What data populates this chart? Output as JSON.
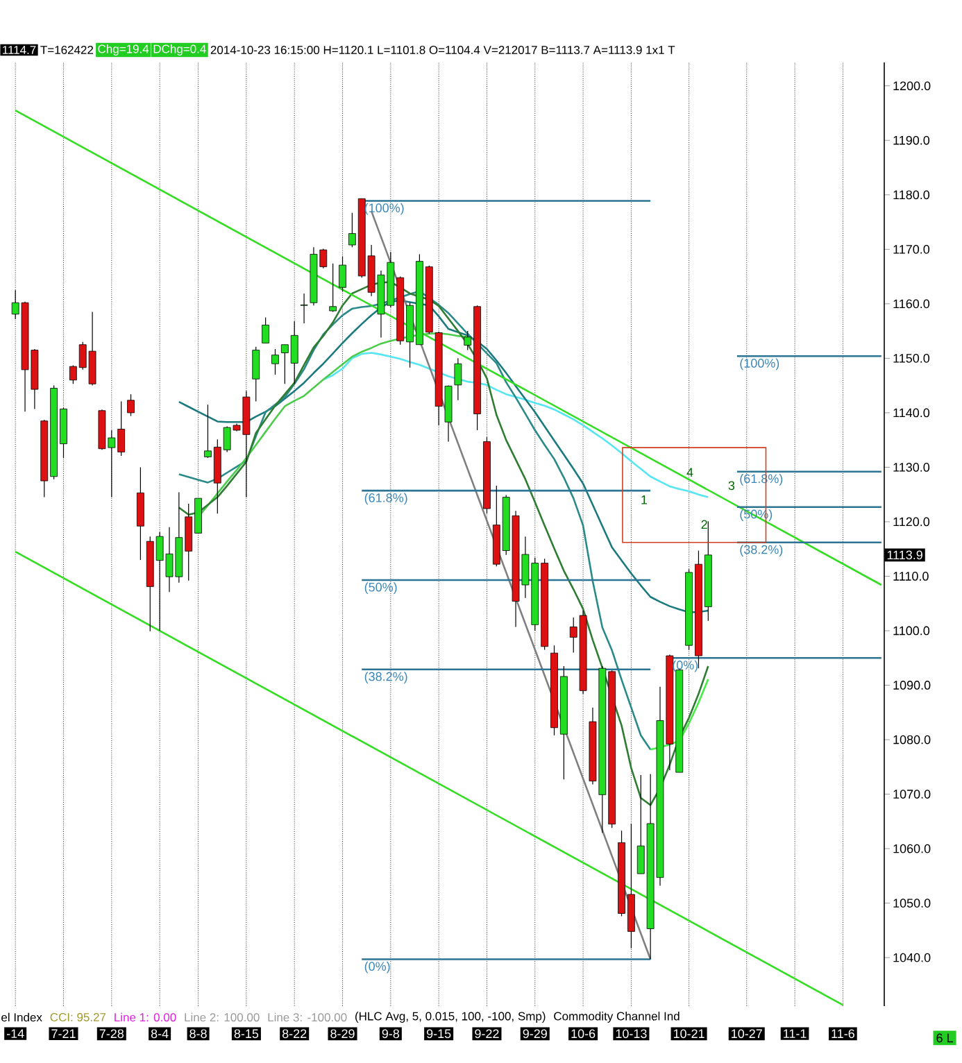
{
  "chart_data": {
    "type": "candlestick",
    "categories": [
      "-14",
      null,
      null,
      null,
      null,
      "7-21",
      null,
      null,
      null,
      null,
      "7-28",
      null,
      null,
      null,
      null,
      "8-4",
      null,
      null,
      null,
      "8-8",
      null,
      null,
      null,
      null,
      "8-15",
      null,
      null,
      null,
      null,
      "8-22",
      null,
      null,
      null,
      null,
      "8-29",
      null,
      null,
      null,
      null,
      "9-8",
      null,
      null,
      null,
      null,
      "9-15",
      null,
      null,
      null,
      null,
      "9-22",
      null,
      null,
      null,
      null,
      "9-29",
      null,
      null,
      null,
      null,
      "10-6",
      null,
      null,
      null,
      null,
      "10-13",
      null,
      null,
      null,
      null,
      null,
      "10-21",
      null,
      null,
      null,
      null,
      null,
      "10-27",
      null,
      null,
      null,
      null,
      "11-1",
      null,
      null,
      null,
      null,
      "11-6",
      null,
      null,
      null,
      null
    ],
    "ohlc": [
      [
        1158.1,
        1162.5,
        1157.2,
        1160.2
      ],
      [
        1160.2,
        1160.4,
        1140.2,
        1147.9
      ],
      [
        1151.5,
        1151.7,
        1140.7,
        1144.3
      ],
      [
        1138.5,
        1138.7,
        1124.5,
        1127.5
      ],
      [
        1128.3,
        1145.0,
        1127.8,
        1144.5
      ],
      [
        1134.3,
        1140.9,
        1131.7,
        1140.7
      ],
      [
        1148.5,
        1148.7,
        1145.3,
        1146.0
      ],
      [
        1152.5,
        1153.0,
        1147.9,
        1148.3
      ],
      [
        1151.3,
        1158.5,
        1145.0,
        1145.3
      ],
      [
        1140.4,
        1140.6,
        1133.2,
        1133.4
      ],
      [
        1133.6,
        1136.8,
        1124.5,
        1135.4
      ],
      [
        1137.0,
        1142.1,
        1132.1,
        1132.8
      ],
      [
        1142.3,
        1143.4,
        1139.4,
        1140.0
      ],
      [
        1125.3,
        1130.0,
        1113.0,
        1119.2
      ],
      [
        1116.4,
        1117.3,
        1099.9,
        1108.1
      ],
      [
        1112.9,
        1118.1,
        1100.0,
        1117.3
      ],
      [
        1109.9,
        1119.0,
        1107.1,
        1114.1
      ],
      [
        1109.9,
        1125.4,
        1108.8,
        1117.1
      ],
      [
        1120.9,
        1123.3,
        1109.2,
        1114.6
      ],
      [
        1117.9,
        1124.3,
        1117.9,
        1124.3
      ],
      [
        1131.9,
        1141.5,
        1131.7,
        1133.0
      ],
      [
        1133.7,
        1135.1,
        1121.5,
        1127.1
      ],
      [
        1133.2,
        1137.5,
        1132.8,
        1137.3
      ],
      [
        1137.7,
        1138.0,
        1136.6,
        1136.8
      ],
      [
        1142.9,
        1144.0,
        1124.5,
        1136.0
      ],
      [
        1146.2,
        1152.1,
        1142.1,
        1151.5
      ],
      [
        1152.8,
        1157.5,
        1152.8,
        1156.1
      ],
      [
        1149.0,
        1151.7,
        1147.0,
        1150.6
      ],
      [
        1151.0,
        1152.5,
        1145.3,
        1152.5
      ],
      [
        1149.1,
        1156.8,
        1145.3,
        1154.2
      ],
      [
        1159.7,
        1161.9,
        1156.4,
        1159.8
      ],
      [
        1160.2,
        1170.4,
        1159.7,
        1169.1
      ],
      [
        1169.9,
        1170.1,
        1166.5,
        1166.8
      ],
      [
        1158.7,
        1167.4,
        1158.5,
        1159.5
      ],
      [
        1163.0,
        1168.7,
        1162.3,
        1167.1
      ],
      [
        1170.8,
        1176.7,
        1170.4,
        1172.9
      ],
      [
        1179.3,
        1179.3,
        1164.8,
        1165.1
      ],
      [
        1168.8,
        1170.8,
        1161.4,
        1162.1
      ],
      [
        1158.1,
        1166.1,
        1153.8,
        1165.3
      ],
      [
        1159.7,
        1169.5,
        1159.3,
        1167.6
      ],
      [
        1164.8,
        1165.0,
        1152.5,
        1153.2
      ],
      [
        1153.0,
        1160.2,
        1148.3,
        1159.7
      ],
      [
        1152.5,
        1169.1,
        1152.5,
        1167.8
      ],
      [
        1166.8,
        1167.0,
        1154.5,
        1154.8
      ],
      [
        1154.7,
        1154.9,
        1137.7,
        1141.2
      ],
      [
        1138.3,
        1145.0,
        1134.7,
        1144.9
      ],
      [
        1145.1,
        1150.0,
        1142.3,
        1149.0
      ],
      [
        1152.4,
        1155.0,
        1151.5,
        1153.9
      ],
      [
        1159.5,
        1159.7,
        1136.8,
        1139.8
      ],
      [
        1134.7,
        1135.5,
        1121.5,
        1122.4
      ],
      [
        1119.4,
        1126.6,
        1111.8,
        1112.2
      ],
      [
        1114.7,
        1124.9,
        1113.9,
        1124.5
      ],
      [
        1121.1,
        1122.0,
        1100.7,
        1105.4
      ],
      [
        1108.4,
        1117.3,
        1106.0,
        1114.0
      ],
      [
        1101.1,
        1113.4,
        1100.0,
        1112.4
      ],
      [
        1112.4,
        1113.2,
        1096.5,
        1097.1
      ],
      [
        1095.9,
        1097.3,
        1080.8,
        1082.2
      ],
      [
        1081.0,
        1093.5,
        1072.7,
        1091.6
      ],
      [
        1100.7,
        1102.4,
        1096.0,
        1098.8
      ],
      [
        1102.8,
        1103.7,
        1088.4,
        1089.0
      ],
      [
        1083.3,
        1085.9,
        1071.8,
        1072.4
      ],
      [
        1069.9,
        1093.5,
        1062.9,
        1093.1
      ],
      [
        1092.5,
        1092.7,
        1063.8,
        1064.5
      ],
      [
        1061.1,
        1063.3,
        1047.6,
        1048.1
      ],
      [
        1051.6,
        1064.6,
        1041.7,
        1044.8
      ],
      [
        1055.4,
        1073.5,
        1055.4,
        1060.5
      ],
      [
        1045.3,
        1073.7,
        1039.7,
        1064.6
      ],
      [
        1054.7,
        1089.7,
        1053.2,
        1083.5
      ],
      [
        1095.4,
        1095.6,
        1074.4,
        1079.2
      ],
      [
        1074.0,
        1093.1,
        1074.0,
        1092.8
      ],
      [
        1097.3,
        1111.3,
        1096.5,
        1110.7
      ],
      [
        1112.2,
        1114.7,
        1093.1,
        1095.4
      ],
      [
        1104.4,
        1120.1,
        1101.8,
        1113.9
      ],
      null,
      null,
      null,
      null,
      null,
      null,
      null,
      null,
      null,
      null,
      null,
      null,
      null,
      null,
      null,
      null,
      null,
      null
    ],
    "series": [
      {
        "type": "line",
        "color": "#55e6f2",
        "values": [
          null,
          null,
          null,
          null,
          null,
          null,
          null,
          null,
          null,
          null,
          null,
          null,
          null,
          null,
          null,
          null,
          null,
          null,
          null,
          null,
          null,
          null,
          null,
          null,
          null,
          null,
          null,
          null,
          null,
          null,
          null,
          null,
          1146.1,
          1146.9,
          1148.1,
          1150.0,
          1150.8,
          1151.0,
          1150.7,
          1150.3,
          1149.9,
          1149.3,
          1148.8,
          1148.1,
          1147.4,
          1146.7,
          1146.2,
          1145.7,
          1145.5,
          1145.1,
          1144.2,
          1143.4,
          1142.9,
          1142.4,
          1141.8,
          1141.3,
          1140.6,
          1139.7,
          1138.8,
          1137.7,
          1136.5,
          1135.3,
          1134.0,
          1132.6,
          1131.1,
          1129.7,
          1128.3,
          1127.4,
          1126.5,
          1126.0,
          1125.6,
          1125.0,
          1124.5,
          null,
          null,
          null,
          null,
          null,
          null,
          null,
          null,
          null,
          null,
          null,
          null,
          null,
          null,
          null,
          null,
          null,
          null
        ]
      },
      {
        "type": "line",
        "color": "#1b7a80",
        "values": [
          null,
          null,
          null,
          null,
          null,
          null,
          null,
          null,
          null,
          null,
          null,
          null,
          null,
          null,
          null,
          null,
          null,
          1142.0,
          1141.1,
          1140.2,
          1139.3,
          1138.4,
          1138.3,
          1138.3,
          1138.3,
          1139.3,
          1140.2,
          1141.2,
          1142.6,
          1144.0,
          1145.5,
          1147.3,
          1149.0,
          1150.9,
          1152.8,
          1154.6,
          1156.3,
          1157.9,
          1159.3,
          1160.4,
          1160.6,
          1160.3,
          1160.0,
          1159.7,
          1157.7,
          1155.4,
          1154.8,
          1154.2,
          1153.1,
          1151.7,
          1149.6,
          1147.3,
          1144.9,
          1142.5,
          1140.1,
          1137.5,
          1134.9,
          1132.3,
          1129.7,
          1127.0,
          1123.1,
          1119.2,
          1115.3,
          1112.9,
          1110.5,
          1108.3,
          1106.2,
          1105.3,
          1104.5,
          1103.9,
          1103.4,
          1103.4,
          1103.7,
          null,
          null,
          null,
          null,
          null,
          null,
          null,
          null,
          null,
          null,
          null,
          null,
          null,
          null,
          null,
          null,
          null,
          null
        ]
      },
      {
        "type": "line",
        "color": "#2a8a8a",
        "values": [
          null,
          null,
          null,
          null,
          null,
          null,
          null,
          null,
          null,
          null,
          null,
          null,
          null,
          null,
          null,
          null,
          null,
          1128.7,
          1128.2,
          1127.7,
          1127.2,
          1127.9,
          1129.0,
          1130.1,
          1131.2,
          1135.7,
          1140.1,
          1141.5,
          1142.9,
          1145.3,
          1148.0,
          1151.5,
          1154.4,
          1156.2,
          1157.9,
          1159.1,
          1159.4,
          1159.6,
          1160.0,
          1160.6,
          1161.2,
          1161.8,
          1162.3,
          1161.1,
          1159.8,
          1158.3,
          1156.4,
          1154.5,
          1152.7,
          1150.9,
          1149.1,
          1145.6,
          1142.8,
          1139.8,
          1136.8,
          1134.1,
          1131.5,
          1128.1,
          1124.3,
          1119.3,
          1109.1,
          1100.6,
          1096.4,
          1091.0,
          1085.9,
          1080.8,
          1078.2,
          null,
          null,
          null,
          null,
          null,
          null,
          null,
          null,
          null,
          null,
          null,
          null,
          null,
          null,
          null,
          null,
          null,
          null,
          null,
          null,
          null,
          null,
          null,
          null
        ]
      },
      {
        "type": "line",
        "color": "#4ccc4c",
        "values": [
          null,
          null,
          null,
          null,
          null,
          null,
          null,
          null,
          null,
          null,
          null,
          null,
          null,
          null,
          null,
          null,
          null,
          null,
          null,
          1120.9,
          1123.0,
          1125.2,
          1127.4,
          1129.5,
          1131.7,
          1134.1,
          1136.5,
          1138.9,
          1141.2,
          1142.2,
          1143.1,
          1144.6,
          1146.1,
          1147.5,
          1148.9,
          1150.3,
          1151.2,
          1151.9,
          1152.7,
          1153.2,
          1153.6,
          1154.0,
          1154.3,
          1154.5,
          1154.6,
          1154.4,
          1154.1,
          1153.9,
          null,
          null,
          null,
          null,
          null,
          null,
          null,
          null,
          null,
          null,
          null,
          null,
          null,
          null,
          null,
          null,
          null,
          null,
          null,
          null,
          null,
          null,
          null,
          null,
          null,
          null,
          null,
          null,
          null,
          null,
          null,
          null,
          null,
          null,
          null,
          null,
          null,
          null,
          null,
          null,
          null,
          null,
          null
        ]
      },
      {
        "type": "line",
        "color": "#44ee44",
        "values": [
          null,
          null,
          null,
          null,
          null,
          null,
          null,
          null,
          null,
          null,
          null,
          null,
          null,
          null,
          null,
          null,
          null,
          null,
          null,
          null,
          null,
          null,
          null,
          null,
          null,
          null,
          null,
          null,
          null,
          null,
          null,
          null,
          null,
          null,
          null,
          null,
          null,
          null,
          null,
          null,
          null,
          null,
          null,
          null,
          null,
          null,
          null,
          null,
          null,
          null,
          null,
          null,
          null,
          null,
          null,
          null,
          null,
          null,
          null,
          null,
          null,
          null,
          null,
          null,
          null,
          null,
          1078.2,
          1078.6,
          1079.1,
          1079.8,
          1083.0,
          1086.8,
          1091.1,
          null,
          null,
          null,
          null,
          null,
          null,
          null,
          null,
          null,
          null,
          null,
          null,
          null,
          null,
          null,
          null,
          null,
          null
        ]
      },
      {
        "type": "line",
        "color": "#2e7d32",
        "values": [
          null,
          null,
          null,
          null,
          null,
          null,
          null,
          null,
          null,
          null,
          null,
          null,
          null,
          null,
          null,
          null,
          null,
          1122.6,
          1121.3,
          1121.7,
          1123.1,
          1124.5,
          1126.6,
          1128.8,
          1131.0,
          1136.3,
          1138.8,
          1141.3,
          1143.4,
          1145.5,
          1148.8,
          1152.0,
          1154.1,
          1156.6,
          1159.7,
          1161.9,
          1162.7,
          1163.5,
          1163.9,
          1164.0,
          1163.0,
          1161.9,
          1161.3,
          1160.8,
          1159.6,
          1157.3,
          1155.0,
          1152.6,
          1149.7,
          1146.3,
          1139.6,
          1135.0,
          1131.4,
          1127.8,
          1123.6,
          1119.3,
          1115.1,
          1111.0,
          1107.6,
          1104.0,
          1098.3,
          1093.2,
          null,
          1082.6,
          1074.8,
          1069.3,
          1068.0,
          1071.1,
          1075.4,
          1080.4,
          1084.0,
          1088.4,
          1093.5,
          null,
          null,
          null,
          null,
          null,
          null,
          null,
          null,
          null,
          null,
          null,
          null,
          null,
          null,
          null,
          null,
          null,
          null
        ]
      },
      {
        "type": "line",
        "color": "#33dd22",
        "values": [
          1195.5,
          null,
          null,
          null,
          null,
          null,
          null,
          null,
          null,
          null,
          null,
          null,
          null,
          null,
          null,
          null,
          null,
          null,
          null,
          null,
          null,
          null,
          null,
          null,
          null,
          null,
          null,
          null,
          null,
          null,
          null,
          null,
          null,
          null,
          null,
          null,
          null,
          null,
          null,
          null,
          null,
          null,
          null,
          null,
          null,
          null,
          null,
          null,
          null,
          null,
          null,
          null,
          null,
          null,
          null,
          null,
          null,
          null,
          null,
          null,
          null,
          null,
          null,
          null,
          null,
          null,
          null,
          null,
          null,
          null,
          null,
          null,
          null,
          null,
          null,
          null,
          null,
          null,
          null,
          null,
          null,
          null,
          null,
          null,
          null,
          null,
          null,
          null,
          null,
          null,
          1108.4
        ]
      },
      {
        "type": "line",
        "color": "#33dd22",
        "values": [
          1114.5,
          null,
          null,
          null,
          null,
          null,
          null,
          null,
          null,
          null,
          null,
          null,
          null,
          null,
          null,
          null,
          null,
          null,
          null,
          null,
          null,
          null,
          null,
          null,
          null,
          null,
          null,
          null,
          null,
          null,
          null,
          null,
          null,
          null,
          null,
          null,
          null,
          null,
          null,
          null,
          null,
          null,
          null,
          null,
          null,
          null,
          null,
          null,
          null,
          null,
          null,
          null,
          null,
          null,
          null,
          null,
          null,
          null,
          null,
          null,
          null,
          null,
          null,
          null,
          null,
          null,
          null,
          null,
          null,
          null,
          null,
          null,
          null,
          null,
          null,
          null,
          null,
          null,
          null,
          null,
          null,
          null,
          null,
          null,
          null,
          null,
          1031.3,
          null,
          null,
          null,
          null
        ]
      },
      {
        "type": "line",
        "color": "#808080",
        "values": [
          null,
          null,
          null,
          null,
          null,
          null,
          null,
          null,
          null,
          null,
          null,
          null,
          null,
          null,
          null,
          null,
          null,
          null,
          null,
          null,
          null,
          null,
          null,
          null,
          null,
          null,
          null,
          null,
          null,
          null,
          null,
          null,
          null,
          null,
          null,
          null,
          null,
          1177.0,
          null,
          null,
          null,
          null,
          null,
          null,
          null,
          null,
          null,
          null,
          null,
          null,
          null,
          null,
          null,
          null,
          null,
          null,
          null,
          null,
          null,
          null,
          null,
          null,
          null,
          null,
          null,
          null,
          1039.7,
          null,
          null,
          null,
          null,
          null,
          null,
          null,
          null,
          null,
          null,
          null,
          null,
          null,
          null,
          null,
          null,
          null,
          null,
          null,
          null,
          null,
          null,
          null,
          null
        ]
      },
      {
        "type": "line",
        "color": "#2b7494",
        "values": [
          null,
          null,
          null,
          null,
          null,
          null,
          null,
          null,
          null,
          null,
          null,
          null,
          null,
          null,
          null,
          null,
          null,
          null,
          null,
          null,
          null,
          null,
          null,
          null,
          null,
          null,
          null,
          null,
          null,
          null,
          null,
          null,
          null,
          null,
          null,
          null,
          1178.9,
          null,
          null,
          null,
          null,
          null,
          null,
          null,
          null,
          null,
          null,
          null,
          null,
          null,
          null,
          null,
          null,
          null,
          null,
          null,
          null,
          null,
          null,
          null,
          null,
          null,
          null,
          null,
          null,
          null,
          1178.9,
          null,
          null,
          null,
          null,
          null,
          null,
          null,
          null,
          null,
          null,
          null,
          null,
          null,
          null,
          null,
          null,
          null,
          null,
          null,
          null,
          null,
          null,
          null,
          null
        ]
      },
      {
        "type": "line",
        "color": "#2b7494",
        "values": [
          null,
          null,
          null,
          null,
          null,
          null,
          null,
          null,
          null,
          null,
          null,
          null,
          null,
          null,
          null,
          null,
          null,
          null,
          null,
          null,
          null,
          null,
          null,
          null,
          null,
          null,
          null,
          null,
          null,
          null,
          null,
          null,
          null,
          null,
          null,
          null,
          1125.7,
          null,
          null,
          null,
          null,
          null,
          null,
          null,
          null,
          null,
          null,
          null,
          null,
          null,
          null,
          null,
          null,
          null,
          null,
          null,
          null,
          null,
          null,
          null,
          null,
          null,
          null,
          null,
          null,
          null,
          1125.7,
          null,
          null,
          null,
          null,
          null,
          null,
          null,
          null,
          null,
          null,
          null,
          null,
          null,
          null,
          null,
          null,
          null,
          null,
          null,
          null,
          null,
          null,
          null,
          null
        ]
      },
      {
        "type": "line",
        "color": "#2b7494",
        "values": [
          null,
          null,
          null,
          null,
          null,
          null,
          null,
          null,
          null,
          null,
          null,
          null,
          null,
          null,
          null,
          null,
          null,
          null,
          null,
          null,
          null,
          null,
          null,
          null,
          null,
          null,
          null,
          null,
          null,
          null,
          null,
          null,
          null,
          null,
          null,
          null,
          1109.3,
          null,
          null,
          null,
          null,
          null,
          null,
          null,
          null,
          null,
          null,
          null,
          null,
          null,
          null,
          null,
          null,
          null,
          null,
          null,
          null,
          null,
          null,
          null,
          null,
          null,
          null,
          null,
          null,
          null,
          1109.3,
          null,
          null,
          null,
          null,
          null,
          null,
          null,
          null,
          null,
          null,
          null,
          null,
          null,
          null,
          null,
          null,
          null,
          null,
          null,
          null,
          null,
          null,
          null,
          null
        ]
      },
      {
        "type": "line",
        "color": "#2b7494",
        "values": [
          null,
          null,
          null,
          null,
          null,
          null,
          null,
          null,
          null,
          null,
          null,
          null,
          null,
          null,
          null,
          null,
          null,
          null,
          null,
          null,
          null,
          null,
          null,
          null,
          null,
          null,
          null,
          null,
          null,
          null,
          null,
          null,
          null,
          null,
          null,
          null,
          1092.9,
          null,
          null,
          null,
          null,
          null,
          null,
          null,
          null,
          null,
          null,
          null,
          null,
          null,
          null,
          null,
          null,
          null,
          null,
          null,
          null,
          null,
          null,
          null,
          null,
          null,
          null,
          null,
          null,
          null,
          1092.9,
          null,
          null,
          null,
          null,
          null,
          null,
          null,
          null,
          null,
          null,
          null,
          null,
          null,
          null,
          null,
          null,
          null,
          null,
          null,
          null,
          null,
          null,
          null,
          null
        ]
      },
      {
        "type": "line",
        "color": "#2b7494",
        "values": [
          null,
          null,
          null,
          null,
          null,
          null,
          null,
          null,
          null,
          null,
          null,
          null,
          null,
          null,
          null,
          null,
          null,
          null,
          null,
          null,
          null,
          null,
          null,
          null,
          null,
          null,
          null,
          null,
          null,
          null,
          null,
          null,
          null,
          null,
          null,
          null,
          1039.7,
          null,
          null,
          null,
          null,
          null,
          null,
          null,
          null,
          null,
          null,
          null,
          null,
          null,
          null,
          null,
          null,
          null,
          null,
          null,
          null,
          null,
          null,
          null,
          null,
          null,
          null,
          null,
          null,
          null,
          1039.7,
          null,
          null,
          null,
          null,
          null,
          null,
          null,
          null,
          null,
          null,
          null,
          null,
          null,
          null,
          null,
          null,
          null,
          null,
          null,
          null,
          null,
          null,
          null,
          null
        ]
      },
      {
        "type": "line",
        "color": "#2b7494",
        "values": [
          null,
          null,
          null,
          null,
          null,
          null,
          null,
          null,
          null,
          null,
          null,
          null,
          null,
          null,
          null,
          null,
          null,
          null,
          null,
          null,
          null,
          null,
          null,
          null,
          null,
          null,
          null,
          null,
          null,
          null,
          null,
          null,
          null,
          null,
          null,
          null,
          null,
          null,
          null,
          null,
          null,
          null,
          null,
          null,
          null,
          null,
          null,
          null,
          null,
          null,
          null,
          null,
          null,
          null,
          null,
          null,
          null,
          null,
          null,
          null,
          null,
          null,
          null,
          null,
          null,
          null,
          null,
          null,
          null,
          null,
          null,
          null,
          null,
          null,
          null,
          1150.4,
          null,
          null,
          null,
          null,
          null,
          null,
          null,
          null,
          null,
          null,
          null,
          null,
          null,
          null,
          1150.4
        ]
      },
      {
        "type": "line",
        "color": "#2b7494",
        "values": [
          null,
          null,
          null,
          null,
          null,
          null,
          null,
          null,
          null,
          null,
          null,
          null,
          null,
          null,
          null,
          null,
          null,
          null,
          null,
          null,
          null,
          null,
          null,
          null,
          null,
          null,
          null,
          null,
          null,
          null,
          null,
          null,
          null,
          null,
          null,
          null,
          null,
          null,
          null,
          null,
          null,
          null,
          null,
          null,
          null,
          null,
          null,
          null,
          null,
          null,
          null,
          null,
          null,
          null,
          null,
          null,
          null,
          null,
          null,
          null,
          null,
          null,
          null,
          null,
          null,
          null,
          null,
          null,
          null,
          null,
          null,
          null,
          null,
          null,
          null,
          1129.2,
          null,
          null,
          null,
          null,
          null,
          null,
          null,
          null,
          null,
          null,
          null,
          null,
          null,
          null,
          1129.2
        ]
      },
      {
        "type": "line",
        "color": "#2b7494",
        "values": [
          null,
          null,
          null,
          null,
          null,
          null,
          null,
          null,
          null,
          null,
          null,
          null,
          null,
          null,
          null,
          null,
          null,
          null,
          null,
          null,
          null,
          null,
          null,
          null,
          null,
          null,
          null,
          null,
          null,
          null,
          null,
          null,
          null,
          null,
          null,
          null,
          null,
          null,
          null,
          null,
          null,
          null,
          null,
          null,
          null,
          null,
          null,
          null,
          null,
          null,
          null,
          null,
          null,
          null,
          null,
          null,
          null,
          null,
          null,
          null,
          null,
          null,
          null,
          null,
          null,
          null,
          null,
          null,
          null,
          null,
          null,
          null,
          null,
          null,
          null,
          1122.7,
          null,
          null,
          null,
          null,
          null,
          null,
          null,
          null,
          null,
          null,
          null,
          null,
          null,
          null,
          1122.7
        ]
      },
      {
        "type": "line",
        "color": "#2b7494",
        "values": [
          null,
          null,
          null,
          null,
          null,
          null,
          null,
          null,
          null,
          null,
          null,
          null,
          null,
          null,
          null,
          null,
          null,
          null,
          null,
          null,
          null,
          null,
          null,
          null,
          null,
          null,
          null,
          null,
          null,
          null,
          null,
          null,
          null,
          null,
          null,
          null,
          null,
          null,
          null,
          null,
          null,
          null,
          null,
          null,
          null,
          null,
          null,
          null,
          null,
          null,
          null,
          null,
          null,
          null,
          null,
          null,
          null,
          null,
          null,
          null,
          null,
          null,
          null,
          null,
          null,
          null,
          null,
          null,
          null,
          null,
          null,
          null,
          null,
          null,
          null,
          1116.2,
          null,
          null,
          null,
          null,
          null,
          null,
          null,
          null,
          null,
          null,
          null,
          null,
          null,
          null,
          1116.2
        ]
      },
      {
        "type": "line",
        "color": "#2b7494",
        "values": [
          null,
          null,
          null,
          null,
          null,
          null,
          null,
          null,
          null,
          null,
          null,
          null,
          null,
          null,
          null,
          null,
          null,
          null,
          null,
          null,
          null,
          null,
          null,
          null,
          null,
          null,
          null,
          null,
          null,
          null,
          null,
          null,
          null,
          null,
          null,
          null,
          null,
          null,
          null,
          null,
          null,
          null,
          null,
          null,
          null,
          null,
          null,
          null,
          null,
          null,
          null,
          null,
          null,
          null,
          null,
          null,
          null,
          null,
          null,
          null,
          null,
          null,
          null,
          null,
          null,
          null,
          null,
          null,
          1095.0,
          null,
          null,
          null,
          null,
          null,
          null,
          null,
          null,
          null,
          null,
          null,
          null,
          null,
          null,
          null,
          null,
          null,
          null,
          null,
          null,
          null,
          1095.0
        ]
      }
    ],
    "ylim": [
      1031.1,
      1204.3
    ],
    "yticks": [
      {
        "value": 1040,
        "label": "1040.0"
      },
      {
        "value": 1050,
        "label": "1050.0"
      },
      {
        "value": 1060,
        "label": "1060.0"
      },
      {
        "value": 1070,
        "label": "1070.0"
      },
      {
        "value": 1080,
        "label": "1080.0"
      },
      {
        "value": 1090,
        "label": "1090.0"
      },
      {
        "value": 1100,
        "label": "1100.0"
      },
      {
        "value": 1110,
        "label": "1110.0"
      },
      {
        "value": 1120,
        "label": "1120.0"
      },
      {
        "value": 1130,
        "label": "1130.0"
      },
      {
        "value": 1140,
        "label": "1140.0"
      },
      {
        "value": 1150,
        "label": "1150.0"
      },
      {
        "value": 1160,
        "label": "1160.0"
      },
      {
        "value": 1170,
        "label": "1170.0"
      },
      {
        "value": 1180,
        "label": "1180.0"
      },
      {
        "value": 1190,
        "label": "1190.0"
      },
      {
        "value": 1200,
        "label": "1200.0"
      }
    ],
    "grid": "x",
    "marker": "none",
    "annotations": [
      "1114.7",
      "T=162422",
      "Chg=19.4",
      "DChg=0.4",
      "2014-10-23 16:15:00 H=1120.1 L=1101.8 O=1104.4 V=212017 B=1113.7 A=1113.9 1x1 T",
      "el Index",
      "CCI: 95.27",
      "Line 1: 0.00",
      "Line 2: 100.00",
      "Line 3: -100.00",
      "(HLC Avg, 5, 0.015, 100, -100, Smp)",
      "Commodity Channel Ind",
      "6 L",
      "1",
      "2",
      "3",
      "4",
      "1113.9",
      {
        "text": "(100%)",
        "y": 1178.9
      },
      {
        "text": "(61.8%)",
        "y": 1125.7
      },
      {
        "text": "(50%)",
        "y": 1109.3
      },
      {
        "text": "(38.2%)",
        "y": 1092.9
      },
      {
        "text": "(0%)",
        "y": 1039.7
      },
      {
        "text": "(100%)",
        "y": 1150.4
      },
      {
        "text": "(61.8%)",
        "y": 1129.2
      },
      {
        "text": "(50%)",
        "y": 1122.7
      },
      {
        "text": "(38.2%)",
        "y": 1116.2
      },
      {
        "text": "(0%)",
        "y": 1095.0
      }
    ]
  }
}
